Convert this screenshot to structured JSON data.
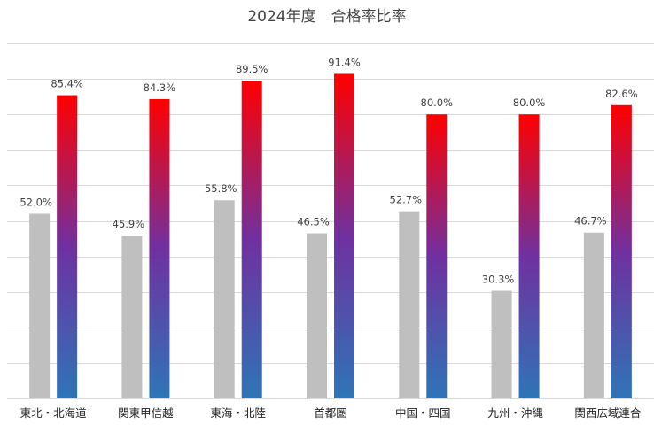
{
  "chart_data": {
    "type": "bar",
    "title": "2024年度　合格率比率",
    "categories": [
      "東北・北海道",
      "関東甲信越",
      "東海・北陸",
      "首都圏",
      "中国・四国",
      "九州・沖縄",
      "関西広域連合"
    ],
    "series": [
      {
        "values": [
          52.0,
          45.9,
          55.8,
          46.5,
          52.7,
          30.3,
          46.7
        ],
        "labels": [
          "52.0%",
          "45.9%",
          "55.8%",
          "46.5%",
          "52.7%",
          "30.3%",
          "46.7%"
        ]
      },
      {
        "values": [
          85.4,
          84.3,
          89.5,
          91.4,
          80.0,
          80.0,
          82.6
        ],
        "labels": [
          "85.4%",
          "84.3%",
          "89.5%",
          "91.4%",
          "80.0%",
          "80.0%",
          "82.6%"
        ]
      }
    ],
    "ylim": [
      0,
      100
    ],
    "grid": true,
    "legend": "none",
    "colors": {
      "series1": "#bfbfbf",
      "series2_top": "#ff0000",
      "series2_mid": "#7030a0",
      "series2_bottom": "#2e75b6",
      "grid": "#d9d9d9"
    }
  }
}
